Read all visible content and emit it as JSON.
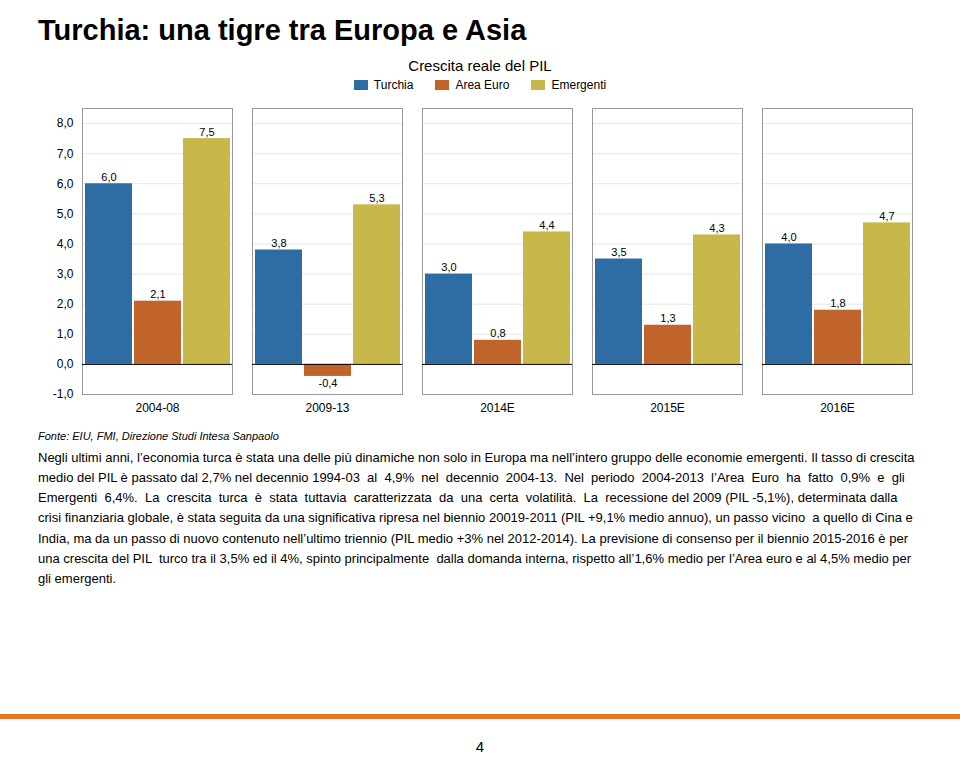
{
  "page_title": "Turchia: una tigre tra Europa e Asia",
  "source": "Fonte: EIU, FMI, Direzione Studi Intesa Sanpaolo",
  "body_text": "Negli ultimi anni, l’economia turca è stata una delle più dinamiche non solo in Europa ma nell’intero gruppo delle economie emergenti. Il tasso di crescita medio del PIL è passato dal 2,7% nel decennio 1994-03  al  4,9%  nel  decennio  2004-13.  Nel  periodo  2004-2013  l’Area  Euro  ha  fatto  0,9%  e  gli Emergenti  6,4%.  La  crescita  turca  è  stata  tuttavia  caratterizzata  da  una  certa  volatilità.  La  recessione del 2009 (PIL -5,1%), determinata dalla crisi finanziaria globale, è stata seguita da una significativa ripresa nel biennio 20019-2011 (PIL +9,1% medio annuo), un passo vicino  a quello di Cina e India, ma da un passo di nuovo contenuto nell’ultimo triennio (PIL medio +3% nel 2012-2014). La previsione di consenso per il biennio 2015-2016 è per una crescita del PIL  turco tra il 3,5% ed il 4%, spinto principalmente  dalla domanda interna, rispetto all’1,6% medio per l’Area euro e al 4,5% medio per gli emergenti.",
  "page_number": "4",
  "line_color": "#E87722",
  "chart_data": {
    "type": "bar",
    "title": "Crescita reale del PIL",
    "categories": [
      "2004-08",
      "2009-13",
      "2014E",
      "2015E",
      "2016E"
    ],
    "series": [
      {
        "name": "Turchia",
        "color": "#2E6DA4",
        "values": [
          6.0,
          3.8,
          3.0,
          3.5,
          4.0
        ],
        "value_labels": [
          "6,0",
          "3,8",
          "3,0",
          "3,5",
          "4,0"
        ]
      },
      {
        "name": "Area Euro",
        "color": "#C0642B",
        "values": [
          2.1,
          -0.4,
          0.8,
          1.3,
          1.8
        ],
        "value_labels": [
          "2,1",
          "-0,4",
          "0,8",
          "1,3",
          "1,8"
        ]
      },
      {
        "name": "Emergenti",
        "color": "#C8B84A",
        "values": [
          7.5,
          5.3,
          4.4,
          4.3,
          4.7
        ],
        "value_labels": [
          "7,5",
          "5,3",
          "4,4",
          "4,3",
          "4,7"
        ]
      }
    ],
    "ylim": [
      -1.0,
      8.5
    ],
    "yticks": [
      {
        "value": -1.0,
        "label": "-1,0"
      },
      {
        "value": 0.0,
        "label": "0,0"
      },
      {
        "value": 1.0,
        "label": "1,0"
      },
      {
        "value": 2.0,
        "label": "2,0"
      },
      {
        "value": 3.0,
        "label": "3,0"
      },
      {
        "value": 4.0,
        "label": "4,0"
      },
      {
        "value": 5.0,
        "label": "5,0"
      },
      {
        "value": 6.0,
        "label": "6,0"
      },
      {
        "value": 7.0,
        "label": "7,0"
      },
      {
        "value": 8.0,
        "label": "8,0"
      }
    ],
    "grid": true,
    "legend": "top",
    "data_labels": true
  }
}
